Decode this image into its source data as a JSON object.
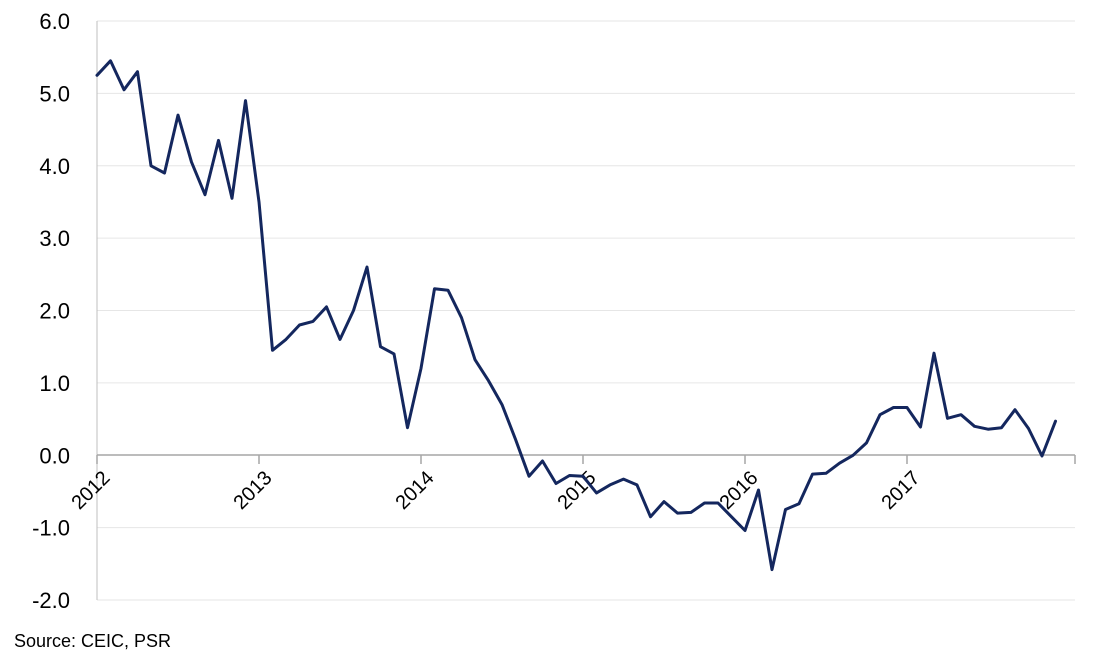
{
  "chart_data": {
    "type": "line",
    "title": "",
    "xlabel": "",
    "ylabel": "",
    "ylim": [
      -2.0,
      6.0
    ],
    "yticks": [
      "6.0",
      "5.0",
      "4.0",
      "3.0",
      "2.0",
      "1.0",
      "0.0",
      "-1.0",
      "-2.0"
    ],
    "xtick_labels": [
      "2012",
      "2013",
      "2014",
      "2015",
      "2016",
      "2017"
    ],
    "grid": "horizontal",
    "legend": "none",
    "series": [
      {
        "color": "#14275e",
        "x_start": "2012-01",
        "frequency": "monthly",
        "values": [
          5.25,
          5.45,
          5.05,
          5.3,
          4.0,
          3.9,
          4.7,
          4.05,
          3.6,
          4.35,
          3.55,
          4.9,
          3.5,
          1.45,
          1.6,
          1.8,
          1.85,
          2.05,
          1.6,
          2.0,
          2.6,
          1.5,
          1.4,
          0.38,
          1.2,
          2.3,
          2.28,
          1.9,
          1.32,
          1.03,
          0.7,
          0.22,
          -0.29,
          -0.08,
          -0.39,
          -0.28,
          -0.29,
          -0.52,
          -0.41,
          -0.33,
          -0.41,
          -0.85,
          -0.64,
          -0.8,
          -0.79,
          -0.66,
          -0.66,
          -0.85,
          -1.04,
          -0.48,
          -1.58,
          -0.75,
          -0.67,
          -0.26,
          -0.25,
          -0.11,
          0.0,
          0.17,
          0.56,
          0.66,
          0.66,
          0.39,
          1.41,
          0.51,
          0.56,
          0.4,
          0.36,
          0.38,
          0.63,
          0.37,
          -0.01,
          0.47
        ]
      }
    ]
  },
  "source_note": "Source: CEIC, PSR"
}
